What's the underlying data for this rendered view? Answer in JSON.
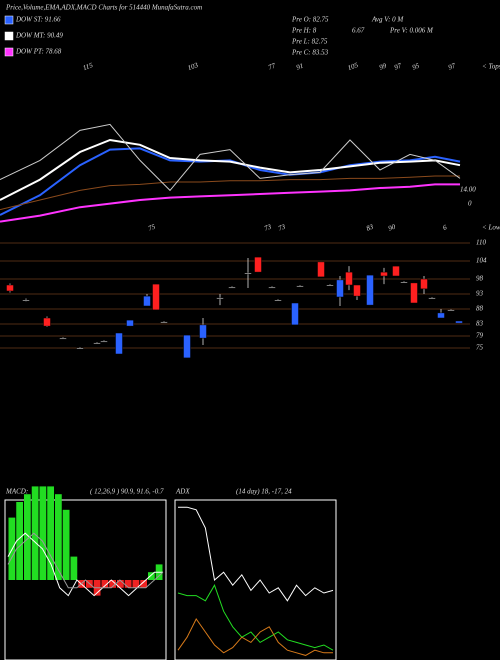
{
  "chart_data": [
    {
      "type": "line",
      "title": "Price,Volume,EMA,ADX,MACD Charts for 514440 MunafaSutra.com",
      "info": [
        "Pre  O: 82.75",
        "Avg V: 0  M",
        "Pre  H: 8",
        "6.67",
        "Pre  V: 0.006  M",
        "Pre  L: 82.75",
        "Pre  C: 83.53"
      ],
      "annotations": [
        "14.00",
        "0"
      ],
      "x": [
        0,
        40,
        80,
        110,
        140,
        170,
        200,
        230,
        260,
        290,
        320,
        350,
        380,
        410,
        435,
        460
      ],
      "xlim": [
        0,
        470
      ],
      "ylim": [
        0,
        100
      ],
      "series": [
        {
          "name": "DOW ST: 91.66",
          "color": "#2a62ff",
          "values": [
            12.5,
            29,
            54,
            67,
            68,
            58,
            57,
            58,
            50,
            46,
            48,
            54,
            57,
            58,
            61,
            57
          ]
        },
        {
          "name": "DOW MT: 90.49",
          "color": "#ffffff",
          "values": [
            25,
            42,
            65,
            75,
            71,
            60,
            58,
            57,
            52,
            48,
            50,
            53,
            56,
            57,
            58,
            54
          ]
        },
        {
          "name": "DOW PT: 78.68",
          "color": "#ff33ff",
          "values": [
            7,
            12,
            19,
            22,
            25,
            27,
            28,
            29,
            30,
            31,
            32,
            33,
            35,
            36,
            38,
            38
          ]
        },
        {
          "color": "#8a4a1c",
          "values": [
            17,
            25,
            33,
            37,
            38,
            40,
            40,
            41,
            41,
            42,
            42,
            43,
            43,
            44,
            45,
            45
          ]
        },
        {
          "color": "#cccccc",
          "values": [
            42,
            58,
            83,
            88,
            58,
            33,
            63,
            67,
            43,
            46,
            48,
            75,
            50,
            63,
            58,
            43
          ]
        }
      ]
    },
    {
      "type": "candlestick",
      "tops_label": "< Tops",
      "tops": [
        "115",
        "103",
        "77",
        "91",
        "105",
        "99",
        "97",
        "95",
        "97"
      ],
      "lows_label": "< Lows",
      "lows": [
        "75",
        "73",
        "73",
        "83",
        "90",
        "6"
      ],
      "x": [
        10,
        26,
        47,
        63,
        80,
        97,
        104,
        119,
        130,
        147,
        156,
        164,
        187,
        203,
        220,
        232,
        248,
        258,
        272,
        278,
        295,
        300,
        321,
        330,
        340,
        349,
        357,
        370,
        384,
        396,
        404,
        414,
        424,
        432,
        441,
        451,
        459
      ],
      "open": [
        96,
        91,
        85,
        78.3,
        75,
        76.7,
        77.3,
        73,
        82.3,
        89,
        96.3,
        83.7,
        71.7,
        78.3,
        91.7,
        95.3,
        100,
        105.3,
        95.3,
        91,
        82.7,
        95.7,
        103.7,
        96,
        92,
        100.3,
        96,
        89.3,
        100.3,
        102.3,
        97,
        96.7,
        98,
        91.7,
        85,
        87.7,
        83.3
      ],
      "high": [
        96.5,
        91.5,
        85.5,
        78.6,
        75.3,
        77,
        77.6,
        80,
        84.3,
        93,
        96.3,
        84,
        79.3,
        85,
        93,
        95.6,
        105,
        105.3,
        95.6,
        91.3,
        90,
        96,
        103.7,
        96.3,
        99,
        102.3,
        96,
        99.3,
        101.7,
        102.3,
        97.3,
        96.7,
        99,
        92,
        88,
        88,
        84
      ],
      "low": [
        93.5,
        90.5,
        82,
        78,
        74.7,
        76.4,
        77,
        73,
        82.3,
        89,
        87.7,
        83.4,
        71.7,
        76,
        89.3,
        95,
        95,
        100.3,
        95,
        90.7,
        82.7,
        95.4,
        98.7,
        95.7,
        89,
        94.3,
        91,
        89.3,
        96.3,
        99,
        96.7,
        90,
        93,
        91.4,
        85,
        87.4,
        83.3
      ],
      "close": [
        94,
        91,
        82.3,
        78.3,
        75,
        76.7,
        77.3,
        80,
        84.3,
        92.3,
        87.7,
        83.7,
        79.3,
        82.7,
        91.7,
        95.3,
        100,
        100.3,
        95.3,
        91,
        90,
        95.7,
        98.7,
        96,
        97.7,
        96,
        92.3,
        99.3,
        99,
        99,
        97,
        90,
        94.7,
        91.7,
        86.7,
        87.7,
        84
      ],
      "up_color": "#2a62ff",
      "down_color": "#ff2020",
      "xlim": [
        0,
        470
      ],
      "ylim": [
        73,
        113
      ],
      "yticks": [
        110,
        104,
        98,
        93,
        88,
        83,
        79,
        75
      ],
      "grid": true,
      "grid_color": "#6b3a1a"
    },
    {
      "type": "macd",
      "title": "MACD:",
      "subtitle": "( 12,26,9 ) 90.9, 91.6, -0.7",
      "ylim": [
        -10,
        10
      ],
      "histogram": [
        8,
        10,
        11,
        12,
        12,
        12,
        11,
        9,
        3,
        -1,
        -1,
        -2,
        -1,
        -1,
        -1,
        -1,
        -1,
        -1,
        1,
        2
      ],
      "hist_colors": {
        "up": "#22dd22",
        "down": "#ee2222"
      },
      "series": [
        {
          "color": "#ffffff",
          "values": [
            3,
            5,
            6,
            5,
            4,
            2,
            -1,
            -2,
            0,
            -1,
            -2,
            -1,
            0,
            -1,
            -2,
            -1,
            0,
            1,
            1
          ]
        },
        {
          "color": "#999999",
          "values": [
            2,
            4,
            5,
            6,
            5,
            3,
            1,
            -1,
            -1,
            0,
            -1,
            -1,
            -1,
            0,
            -1,
            -1,
            -1,
            0,
            1
          ]
        }
      ]
    },
    {
      "type": "adx",
      "title": "ADX",
      "subtitle": "(14 day) 18, -17, 24",
      "ylim": [
        0,
        60
      ],
      "series": [
        {
          "color": "#ffffff",
          "values": [
            58,
            58,
            57,
            50,
            30,
            33,
            28,
            32,
            26,
            30,
            25,
            27,
            22,
            28,
            24,
            27,
            25,
            26
          ]
        },
        {
          "color": "#22dd22",
          "values": [
            25,
            24,
            24,
            22,
            28,
            18,
            12,
            8,
            10,
            6,
            8,
            10,
            7,
            6,
            5,
            4,
            5,
            3
          ]
        },
        {
          "color": "#d77a1a",
          "values": [
            3,
            8,
            15,
            10,
            5,
            2,
            4,
            8,
            6,
            10,
            12,
            6,
            3,
            2,
            1,
            3,
            2,
            2
          ]
        }
      ]
    }
  ]
}
